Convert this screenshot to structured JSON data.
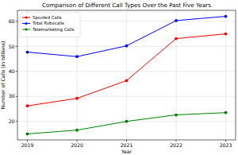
{
  "chart_data": {
    "type": "line",
    "title": "Comparison of Different Call Types Over the Past Five Years",
    "x_label": "Year",
    "y_label": "Number of Calls (in billions)",
    "x": [
      2019,
      2020,
      2021,
      2022,
      2023
    ],
    "series": [
      {
        "name": "Spoofed Calls",
        "color": "#ff0000",
        "marker": "circle",
        "values": [
          26.2,
          29.2,
          36.3,
          53.1,
          55.0
        ]
      },
      {
        "name": "Total Robocalls",
        "color": "#0000ff",
        "marker": "circle",
        "values": [
          47.7,
          45.9,
          50.2,
          60.3,
          62.0
        ]
      },
      {
        "name": "Telemarketing Calls",
        "color": "#008000",
        "marker": "circle",
        "values": [
          15.0,
          16.5,
          20.0,
          22.6,
          23.5
        ]
      }
    ],
    "xlim": [
      2018.8,
      2023.2
    ],
    "xticks": [
      2019,
      2020,
      2021,
      2022,
      2023
    ],
    "ylim": [
      12.6,
      64.4
    ],
    "yticks": [
      20,
      30,
      40,
      50,
      60
    ],
    "grid": true,
    "legend": "upper left"
  }
}
